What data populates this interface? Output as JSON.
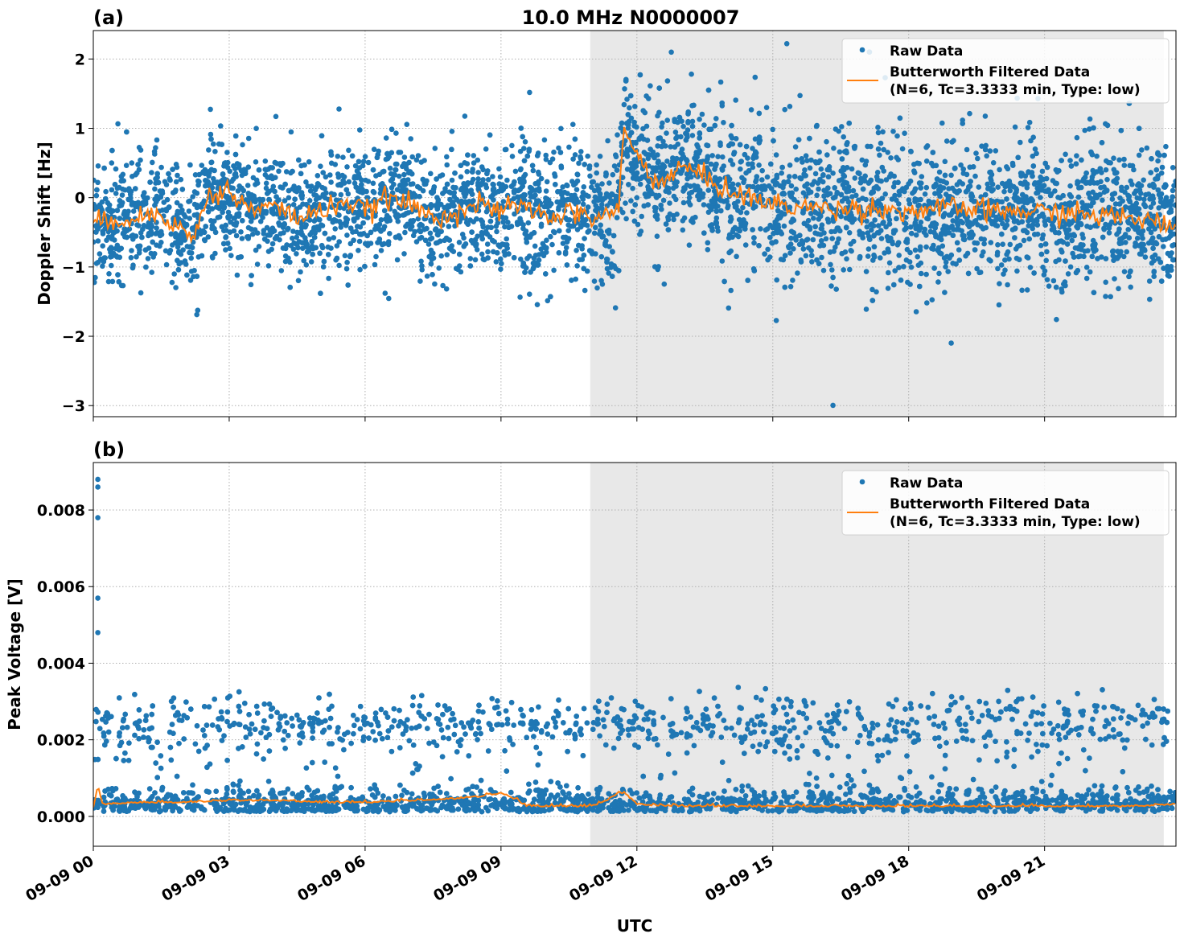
{
  "figure_title": "10.0 MHz N0000007",
  "colors": {
    "raw": "#1f77b4",
    "filtered": "#ff7f0e",
    "shade": "#e8e8e8"
  },
  "chart_data": [
    {
      "panel_label": "(a)",
      "type": "scatter",
      "ylabel": "Doppler Shift [Hz]",
      "xlabel": "",
      "xlim_hours": [
        0,
        23.9
      ],
      "ylim": [
        -3.16,
        2.41
      ],
      "yticks": [
        2,
        1,
        0,
        -1,
        -2,
        -3
      ],
      "ytick_labels": [
        "2",
        "1",
        "0",
        "−1",
        "−2",
        "−3"
      ],
      "grid": true,
      "shaded_region_hours": [
        10.97,
        23.63
      ],
      "legend": {
        "placement": "top-right",
        "entries": [
          "Raw Data",
          "Butterworth Filtered Data",
          "(N=6, Tc=3.3333 min, Type: low)"
        ]
      },
      "series": [
        {
          "name": "Butterworth Filtered Data",
          "type": "line",
          "x_hours": [
            0,
            0.5,
            1,
            1.5,
            2,
            2.2,
            2.5,
            3,
            3.5,
            4,
            4.5,
            5,
            5.5,
            6,
            6.5,
            7,
            7.5,
            8,
            8.5,
            9,
            9.5,
            10,
            10.5,
            11,
            11.5,
            11.6,
            11.7,
            12,
            12.5,
            13,
            13.5,
            14,
            14.5,
            15,
            16,
            17,
            18,
            19,
            20,
            21,
            22,
            23,
            23.9
          ],
          "y": [
            -0.4,
            -0.3,
            -0.3,
            -0.2,
            -0.5,
            -0.6,
            0.0,
            0.1,
            -0.2,
            -0.1,
            -0.3,
            -0.2,
            -0.05,
            -0.2,
            0.0,
            -0.1,
            -0.3,
            -0.2,
            -0.1,
            -0.2,
            -0.1,
            -0.3,
            -0.2,
            -0.3,
            -0.2,
            -0.2,
            1.0,
            0.6,
            0.2,
            0.45,
            0.3,
            0.1,
            0.0,
            -0.1,
            -0.15,
            -0.15,
            -0.2,
            -0.15,
            -0.2,
            -0.2,
            -0.25,
            -0.3,
            -0.4
          ]
        }
      ]
    },
    {
      "panel_label": "(b)",
      "type": "scatter",
      "ylabel": "Peak Voltage [V]",
      "xlabel": "UTC",
      "xlim_hours": [
        0,
        23.9
      ],
      "ylim": [
        -0.00078,
        0.00924
      ],
      "yticks": [
        0,
        0.002,
        0.004,
        0.006,
        0.008
      ],
      "ytick_labels": [
        "0.000",
        "0.002",
        "0.004",
        "0.006",
        "0.008"
      ],
      "xticks_hours": [
        0,
        3,
        6,
        9,
        12,
        15,
        18,
        21
      ],
      "xtick_labels": [
        "09-09 00",
        "09-09 03",
        "09-09 06",
        "09-09 09",
        "09-09 12",
        "09-09 15",
        "09-09 18",
        "09-09 21"
      ],
      "grid": true,
      "shaded_region_hours": [
        10.97,
        23.63
      ],
      "legend": {
        "placement": "top-right",
        "entries": [
          "Raw Data",
          "Butterworth Filtered Data",
          "(N=6, Tc=3.3333 min, Type: low)"
        ]
      },
      "outliers": {
        "x_hours": [
          0.1,
          0.1,
          0.1,
          0.1,
          0.1
        ],
        "y": [
          0.0088,
          0.0086,
          0.0078,
          0.0057,
          0.0048
        ]
      },
      "series": [
        {
          "name": "Butterworth Filtered Data",
          "type": "line",
          "x_hours": [
            0,
            0.1,
            0.2,
            1,
            2,
            3,
            4,
            5,
            6,
            7,
            8,
            8.5,
            9,
            9.4,
            9.5,
            10,
            11,
            11.7,
            12,
            13,
            14,
            15,
            16,
            17,
            18,
            19,
            20,
            21,
            22,
            23,
            23.9
          ],
          "y": [
            0.0002,
            0.0008,
            0.0003,
            0.00035,
            0.00035,
            0.0004,
            0.0004,
            0.00035,
            0.00035,
            0.0004,
            0.00045,
            0.0005,
            0.0006,
            0.0004,
            0.00025,
            0.00025,
            0.00025,
            0.0006,
            0.0003,
            0.00025,
            0.00025,
            0.00025,
            0.00025,
            0.00025,
            0.00025,
            0.00025,
            0.00025,
            0.00025,
            0.00025,
            0.00025,
            0.0003
          ]
        }
      ]
    }
  ]
}
